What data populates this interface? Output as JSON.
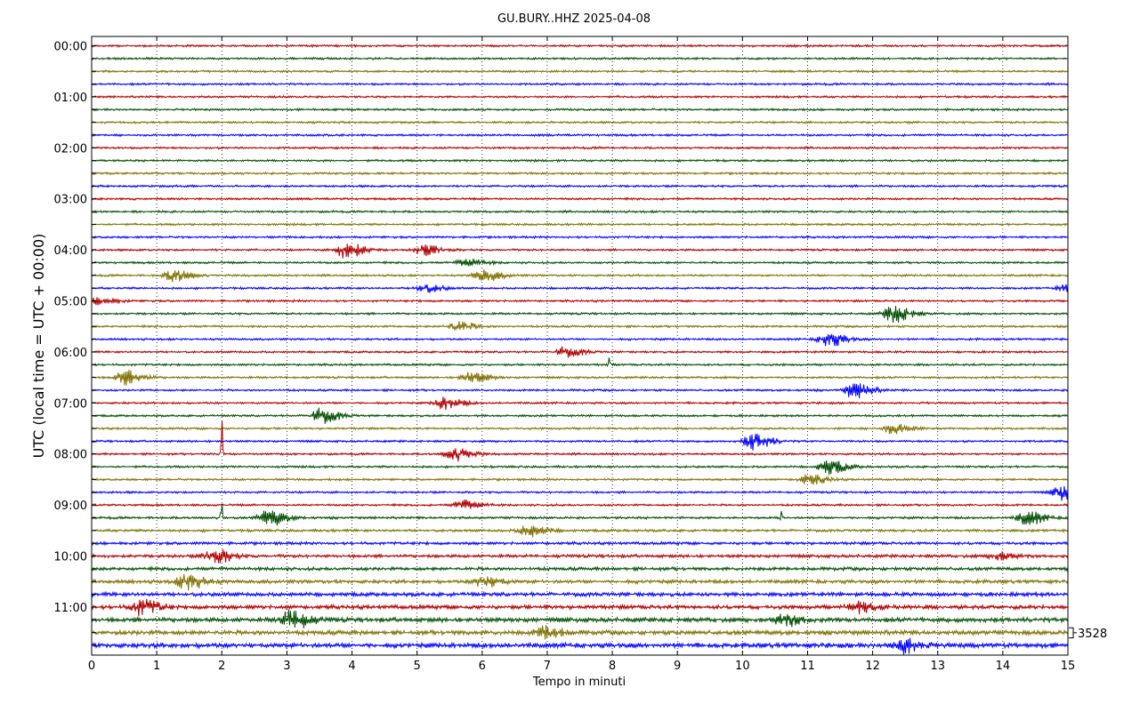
{
  "chart_data": {
    "type": "seismogram-helicorder",
    "title": "GU.BURY..HHZ 2025-04-08",
    "xlabel": "Tempo in minuti",
    "ylabel": "UTC (local time = UTC + 00:00)",
    "xlim": [
      0,
      15
    ],
    "x_ticks": [
      "0",
      "1",
      "2",
      "3",
      "4",
      "5",
      "6",
      "7",
      "8",
      "9",
      "10",
      "11",
      "12",
      "13",
      "14",
      "15"
    ],
    "y_tick_labels": [
      "00:00",
      "01:00",
      "02:00",
      "03:00",
      "04:00",
      "05:00",
      "06:00",
      "07:00",
      "08:00",
      "09:00",
      "10:00",
      "11:00"
    ],
    "trace_minutes": 15,
    "trace_count": 48,
    "trace_colors": [
      "#b00000",
      "#004d00",
      "#807000",
      "#0000ff"
    ],
    "scale_label": "3528",
    "grid": "vertical dotted",
    "events": [
      {
        "trace": 16,
        "minute": 3.9,
        "amp": 10
      },
      {
        "trace": 16,
        "minute": 5.1,
        "amp": 6
      },
      {
        "trace": 17,
        "minute": 5.75,
        "amp": 5
      },
      {
        "trace": 18,
        "minute": 1.25,
        "amp": 7
      },
      {
        "trace": 18,
        "minute": 6.0,
        "amp": 7
      },
      {
        "trace": 19,
        "minute": 5.1,
        "amp": 5
      },
      {
        "trace": 19,
        "minute": 14.95,
        "amp": 4
      },
      {
        "trace": 20,
        "minute": 0.1,
        "amp": 4
      },
      {
        "trace": 21,
        "minute": 12.3,
        "amp": 10
      },
      {
        "trace": 22,
        "minute": 5.6,
        "amp": 6
      },
      {
        "trace": 23,
        "minute": 11.3,
        "amp": 9
      },
      {
        "trace": 24,
        "minute": 7.25,
        "amp": 6
      },
      {
        "trace": 26,
        "minute": 0.5,
        "amp": 9
      },
      {
        "trace": 26,
        "minute": 5.8,
        "amp": 7
      },
      {
        "trace": 27,
        "minute": 11.7,
        "amp": 9
      },
      {
        "trace": 28,
        "minute": 5.4,
        "amp": 7
      },
      {
        "trace": 29,
        "minute": 3.5,
        "amp": 9
      },
      {
        "trace": 30,
        "minute": 12.3,
        "amp": 6
      },
      {
        "trace": 31,
        "minute": 10.15,
        "amp": 10
      },
      {
        "trace": 32,
        "minute": 5.55,
        "amp": 8
      },
      {
        "trace": 33,
        "minute": 11.3,
        "amp": 9
      },
      {
        "trace": 34,
        "minute": 11.0,
        "amp": 6
      },
      {
        "trace": 35,
        "minute": 14.9,
        "amp": 9
      },
      {
        "trace": 36,
        "minute": 5.7,
        "amp": 6
      },
      {
        "trace": 37,
        "minute": 2.7,
        "amp": 10
      },
      {
        "trace": 37,
        "minute": 14.35,
        "amp": 8
      },
      {
        "trace": 38,
        "minute": 6.7,
        "amp": 7
      },
      {
        "trace": 40,
        "minute": 1.85,
        "amp": 9
      },
      {
        "trace": 40,
        "minute": 13.95,
        "amp": 5
      },
      {
        "trace": 42,
        "minute": 1.45,
        "amp": 10
      },
      {
        "trace": 42,
        "minute": 6.0,
        "amp": 7
      },
      {
        "trace": 44,
        "minute": 0.75,
        "amp": 9
      },
      {
        "trace": 44,
        "minute": 11.75,
        "amp": 7
      },
      {
        "trace": 45,
        "minute": 3.05,
        "amp": 12
      },
      {
        "trace": 45,
        "minute": 10.6,
        "amp": 8
      },
      {
        "trace": 46,
        "minute": 6.95,
        "amp": 7
      },
      {
        "trace": 47,
        "minute": 12.45,
        "amp": 9
      }
    ],
    "spikes": [
      {
        "trace": 32,
        "minute": 2.0,
        "amp": 60
      },
      {
        "trace": 37,
        "minute": 2.0,
        "amp": 25
      },
      {
        "trace": 37,
        "minute": 10.6,
        "amp": 12
      },
      {
        "trace": 25,
        "minute": 7.95,
        "amp": 8
      }
    ]
  }
}
